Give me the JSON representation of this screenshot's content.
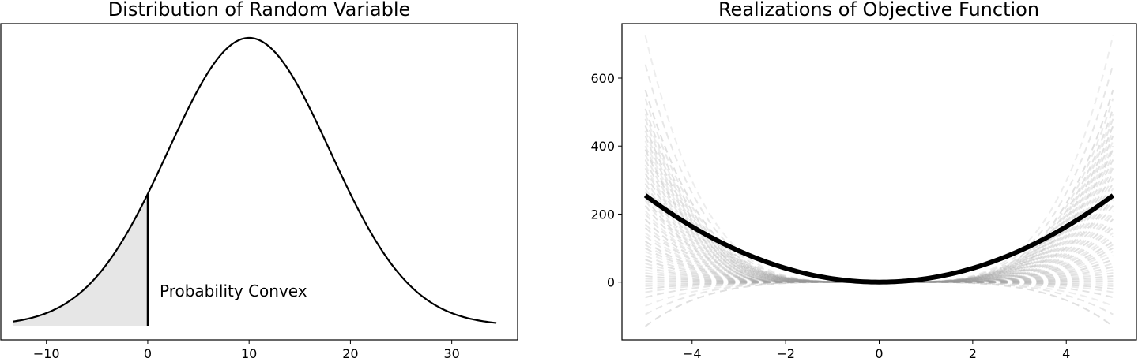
{
  "chart_data": [
    {
      "type": "area",
      "title": "Distribution of Random Variable",
      "xlabel": "",
      "ylabel": "",
      "xlim": [
        -14.5,
        36.5
      ],
      "x_ticks": [
        "−10",
        "0",
        "10",
        "20",
        "30"
      ],
      "x_tick_values": [
        -10,
        0,
        10,
        20,
        30
      ],
      "y_ticks": [],
      "curve": {
        "kind": "normal-pdf",
        "mean": 10,
        "std": 8,
        "x_range": [
          -13.3,
          34.4
        ]
      },
      "shaded_region": {
        "from": -13.3,
        "to": 0,
        "color": "#e6e6e6"
      },
      "cutoff_line_x": 0,
      "annotation": "Probability Convex",
      "grid": false
    },
    {
      "type": "line",
      "title": "Realizations of Objective Function",
      "xlabel": "",
      "ylabel": "",
      "xlim": [
        -5.5,
        5.5
      ],
      "ylim": [
        -170,
        760
      ],
      "x_ticks": [
        "−4",
        "−2",
        "0",
        "2",
        "4"
      ],
      "x_tick_values": [
        -4,
        -2,
        0,
        2,
        4
      ],
      "y_ticks": [
        "0",
        "200",
        "400",
        "600"
      ],
      "y_tick_values": [
        0,
        200,
        400,
        600
      ],
      "x_range": [
        -5,
        5
      ],
      "mean_curve": {
        "label": "",
        "values_at": {
          "-5": 255,
          "0": 0,
          "5": 255
        },
        "color": "#000000"
      },
      "realizations": {
        "style": "dashed",
        "color": "#999999",
        "value_at_x_plus_minus_5": [
          725,
          640,
          565,
          540,
          510,
          495,
          480,
          460,
          445,
          430,
          415,
          400,
          390,
          375,
          360,
          345,
          335,
          320,
          305,
          290,
          275,
          265,
          250,
          240,
          225,
          210,
          200,
          185,
          170,
          160,
          145,
          135,
          120,
          110,
          100,
          90,
          78,
          66,
          55,
          45,
          36,
          27,
          18,
          10,
          3,
          -5,
          -12,
          -20,
          -30,
          -45,
          -70,
          -95,
          -130
        ]
      },
      "grid": false
    }
  ]
}
